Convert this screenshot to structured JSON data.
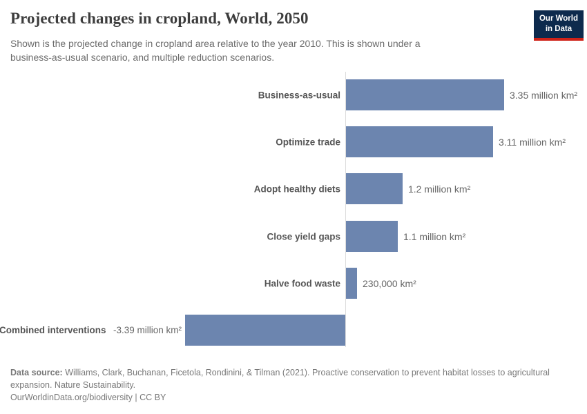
{
  "header": {
    "title": "Projected changes in cropland, World, 2050",
    "subtitle": "Shown is the projected change in cropland area relative to the year 2010. This is shown under a business-as-usual scenario, and multiple reduction scenarios."
  },
  "logo": {
    "line1": "Our World",
    "line2": "in Data",
    "bg_color": "#0d2a4d",
    "accent_color": "#cf2218",
    "text_color": "#ffffff"
  },
  "chart_data": {
    "type": "bar",
    "orientation": "horizontal",
    "title": "Projected changes in cropland, World, 2050",
    "xlabel": "",
    "ylabel": "",
    "value_unit": "million km²",
    "baseline_year": "2010",
    "bar_color": "#6c85af",
    "axis_line_color": "#dcdcdc",
    "grid": "off",
    "legend": "none",
    "xlim_million_km2": [
      -3.5,
      5.1
    ],
    "categories": [
      "Business-as-usual",
      "Optimize trade",
      "Adopt healthy diets",
      "Close yield gaps",
      "Halve food waste",
      "Combined interventions"
    ],
    "values": [
      3.35,
      3.11,
      1.2,
      1.1,
      0.23,
      -3.39
    ],
    "bars": [
      {
        "label": "Business-as-usual",
        "value": 3.35,
        "display": "3.35 million km²"
      },
      {
        "label": "Optimize trade",
        "value": 3.11,
        "display": "3.11 million km²"
      },
      {
        "label": "Adopt healthy diets",
        "value": 1.2,
        "display": "1.2 million km²"
      },
      {
        "label": "Close yield gaps",
        "value": 1.1,
        "display": "1.1 million km²"
      },
      {
        "label": "Halve food waste",
        "value": 0.23,
        "display": "230,000 km²"
      },
      {
        "label": "Combined interventions",
        "value": -3.39,
        "display": "-3.39 million km²"
      }
    ]
  },
  "footer": {
    "datasource_label": "Data source:",
    "datasource_text": "Williams, Clark, Buchanan, Ficetola, Rondinini, & Tilman (2021). Proactive conservation to prevent habitat losses to agricultural expansion. Nature Sustainability.",
    "link_text": "OurWorldinData.org/biodiversity | CC BY"
  }
}
